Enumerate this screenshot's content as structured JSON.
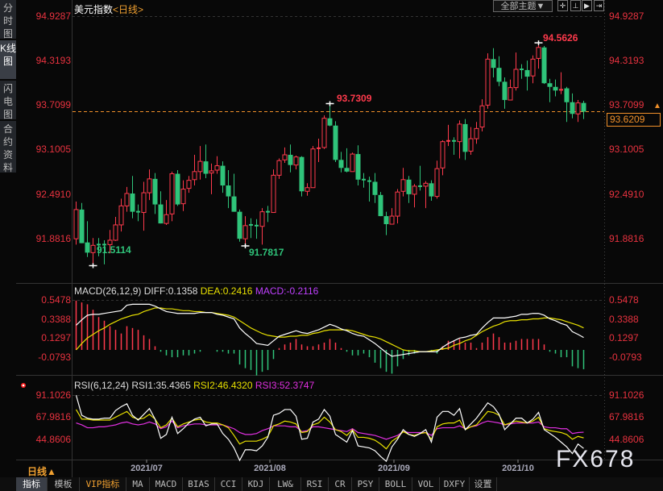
{
  "sidebar": {
    "tabs": [
      {
        "label": "分时图",
        "active": false
      },
      {
        "label": "K线图",
        "active": true
      },
      {
        "label": "闪电图",
        "active": false
      },
      {
        "label": "合约资料",
        "active": false
      }
    ]
  },
  "header": {
    "symbol": "美元指数",
    "period": "<日线>",
    "theme_button": "全部主题▼"
  },
  "toolbar_icons": [
    "crosshair-icon",
    "zoom-range-icon",
    "play-forward-icon",
    "exit-icon"
  ],
  "colors": {
    "up": "#ff3a4c",
    "down": "#2fc47a",
    "diff": "#ffffff",
    "dea": "#e8e000",
    "macd_label": "#c040ff",
    "rsi1": "#ffffff",
    "rsi2": "#e8e000",
    "rsi3": "#e030e0",
    "last_price": "#f0902a"
  },
  "price_axis": {
    "labels": [
      "94.9287",
      "94.3193",
      "93.7099",
      "93.1005",
      "92.4910",
      "91.8816"
    ],
    "last_price": "93.6209"
  },
  "annotations": {
    "high1": "93.7309",
    "high2": "94.5626",
    "low1": "91.5114",
    "low2": "91.7817"
  },
  "macd": {
    "title": "MACD(26,12,9)",
    "diff_label": "DIFF:0.1358",
    "dea_label": "DEA:0.2416",
    "macd_label": "MACD:-0.2116",
    "axis_labels": [
      "0.5478",
      "0.3388",
      "0.1297",
      "-0.0793"
    ]
  },
  "rsi": {
    "title": "RSI(6,12,24)",
    "rsi1_label": "RSI1:35.4365",
    "rsi2_label": "RSI2:46.4320",
    "rsi3_label": "RSI3:52.3747",
    "axis_labels": [
      "91.1026",
      "67.9816",
      "44.8606"
    ]
  },
  "date_axis": {
    "period_label": "日线▲",
    "labels": [
      "2021/07",
      "2021/08",
      "2021/09",
      "2021/10"
    ]
  },
  "bottom_tabs": [
    "指标",
    "模板",
    "VIP指标",
    "MA",
    "MACD",
    "BIAS",
    "CCI",
    "KDJ",
    "LW&",
    "RSI",
    "CR",
    "PSY",
    "BOLL",
    "VOL",
    "DXFY",
    "设置"
  ],
  "watermark": "FX678",
  "chart_data": {
    "type": "candlestick",
    "title": "美元指数<日线>",
    "ylim": [
      91.3,
      94.9287
    ],
    "candles_ohlc": [
      [
        91.88,
        92.39,
        91.8,
        92.28
      ],
      [
        92.28,
        92.37,
        91.82,
        91.82
      ],
      [
        91.83,
        92.12,
        91.63,
        91.69
      ],
      [
        91.69,
        91.89,
        91.5114,
        91.79
      ],
      [
        91.8,
        91.89,
        91.64,
        91.79
      ],
      [
        91.8,
        91.86,
        91.53,
        91.79
      ],
      [
        91.8,
        92.0,
        91.68,
        91.86
      ],
      [
        91.86,
        92.18,
        91.85,
        92.07
      ],
      [
        92.07,
        92.43,
        91.98,
        92.33
      ],
      [
        92.33,
        92.59,
        92.25,
        92.5
      ],
      [
        92.5,
        92.74,
        92.16,
        92.25
      ],
      [
        92.25,
        92.35,
        92.12,
        92.24
      ],
      [
        92.24,
        92.66,
        91.99,
        92.51
      ],
      [
        92.51,
        92.83,
        92.41,
        92.7
      ],
      [
        92.7,
        92.78,
        92.22,
        92.35
      ],
      [
        92.35,
        92.53,
        92.09,
        92.09
      ],
      [
        92.09,
        92.41,
        92.07,
        92.21
      ],
      [
        92.22,
        92.8,
        92.12,
        92.77
      ],
      [
        92.77,
        92.82,
        92.33,
        92.35
      ],
      [
        92.36,
        92.68,
        92.26,
        92.56
      ],
      [
        92.57,
        92.74,
        92.51,
        92.68
      ],
      [
        92.69,
        93.03,
        92.61,
        92.8
      ],
      [
        92.8,
        93.15,
        92.69,
        92.94
      ],
      [
        92.94,
        93.17,
        92.71,
        92.77
      ],
      [
        92.78,
        92.91,
        92.49,
        92.81
      ],
      [
        92.82,
        93.01,
        92.77,
        92.88
      ],
      [
        92.88,
        92.94,
        92.51,
        92.61
      ],
      [
        92.61,
        92.82,
        92.3,
        92.46
      ],
      [
        92.46,
        92.77,
        92.25,
        92.25
      ],
      [
        92.25,
        92.28,
        91.84,
        91.88
      ],
      [
        91.88,
        92.19,
        91.7817,
        92.06
      ],
      [
        92.07,
        92.16,
        91.89,
        92.06
      ],
      [
        92.06,
        92.15,
        91.88,
        92.05
      ],
      [
        92.05,
        92.3,
        91.8,
        92.25
      ],
      [
        92.25,
        92.33,
        92.11,
        92.24
      ],
      [
        92.24,
        92.83,
        92.24,
        92.75
      ],
      [
        92.75,
        92.98,
        92.7,
        92.95
      ],
      [
        92.96,
        93.13,
        92.92,
        93.03
      ],
      [
        93.03,
        93.17,
        92.79,
        92.89
      ],
      [
        92.89,
        93.02,
        92.83,
        93.0
      ],
      [
        93.0,
        93.01,
        92.46,
        92.53
      ],
      [
        92.53,
        92.64,
        92.47,
        92.58
      ],
      [
        92.58,
        93.15,
        92.58,
        93.11
      ],
      [
        93.11,
        93.25,
        92.93,
        93.12
      ],
      [
        93.13,
        93.57,
        93.11,
        93.53
      ],
      [
        93.53,
        93.7309,
        93.42,
        93.43
      ],
      [
        93.43,
        93.49,
        92.93,
        92.96
      ],
      [
        92.96,
        93.07,
        92.79,
        92.85
      ],
      [
        92.85,
        93.12,
        92.79,
        92.8
      ],
      [
        92.8,
        93.06,
        92.8,
        93.04
      ],
      [
        93.04,
        93.16,
        92.61,
        92.69
      ],
      [
        92.69,
        92.78,
        92.58,
        92.68
      ],
      [
        92.67,
        92.73,
        92.39,
        92.66
      ],
      [
        92.66,
        92.78,
        92.37,
        92.48
      ],
      [
        92.48,
        92.52,
        92.19,
        92.19
      ],
      [
        92.19,
        92.25,
        91.93,
        92.08
      ],
      [
        92.08,
        92.3,
        92.08,
        92.19
      ],
      [
        92.19,
        92.56,
        92.09,
        92.52
      ],
      [
        92.53,
        92.85,
        92.46,
        92.69
      ],
      [
        92.69,
        92.74,
        92.37,
        92.49
      ],
      [
        92.49,
        92.63,
        92.31,
        92.6
      ],
      [
        92.6,
        92.88,
        92.54,
        92.59
      ],
      [
        92.6,
        92.67,
        92.3,
        92.64
      ],
      [
        92.64,
        92.68,
        92.4,
        92.46
      ],
      [
        92.46,
        92.95,
        92.43,
        92.84
      ],
      [
        92.85,
        93.23,
        92.75,
        93.21
      ],
      [
        93.21,
        93.44,
        93.15,
        93.22
      ],
      [
        93.22,
        93.27,
        93.03,
        93.21
      ],
      [
        93.21,
        93.5,
        92.98,
        93.45
      ],
      [
        93.45,
        93.52,
        92.96,
        93.07
      ],
      [
        93.08,
        93.41,
        93.03,
        93.25
      ],
      [
        93.25,
        93.48,
        93.18,
        93.39
      ],
      [
        93.41,
        93.79,
        93.35,
        93.7
      ],
      [
        93.71,
        94.42,
        93.66,
        94.34
      ],
      [
        94.34,
        94.49,
        94.09,
        94.22
      ],
      [
        94.22,
        94.38,
        93.97,
        94.03
      ],
      [
        94.03,
        94.09,
        93.66,
        93.78
      ],
      [
        93.78,
        94.06,
        93.78,
        93.95
      ],
      [
        93.95,
        94.43,
        93.91,
        94.2
      ],
      [
        94.2,
        94.27,
        94.07,
        94.19
      ],
      [
        94.19,
        94.32,
        93.91,
        94.1
      ],
      [
        94.11,
        94.39,
        94.01,
        94.34
      ],
      [
        94.35,
        94.5626,
        94.21,
        94.5
      ],
      [
        94.5,
        94.52,
        94.0,
        94.01
      ],
      [
        94.01,
        94.07,
        93.75,
        93.96
      ],
      [
        93.96,
        94.06,
        93.83,
        93.91
      ],
      [
        93.91,
        94.16,
        93.86,
        93.92
      ],
      [
        93.94,
        93.96,
        93.48,
        93.75
      ],
      [
        93.75,
        93.87,
        93.53,
        93.59
      ],
      [
        93.59,
        93.78,
        93.48,
        93.74
      ],
      [
        93.74,
        93.77,
        93.52,
        93.6209
      ]
    ],
    "macd_diff": [
      0.27,
      0.33,
      0.38,
      0.39,
      0.39,
      0.4,
      0.41,
      0.42,
      0.43,
      0.49,
      0.5,
      0.5,
      0.5,
      0.5,
      0.48,
      0.45,
      0.42,
      0.41,
      0.4,
      0.4,
      0.4,
      0.4,
      0.41,
      0.41,
      0.41,
      0.39,
      0.38,
      0.36,
      0.34,
      0.24,
      0.18,
      0.13,
      0.07,
      0.06,
      0.05,
      0.1,
      0.15,
      0.17,
      0.19,
      0.21,
      0.19,
      0.18,
      0.2,
      0.22,
      0.25,
      0.28,
      0.26,
      0.23,
      0.21,
      0.18,
      0.16,
      0.15,
      0.11,
      0.07,
      0.02,
      -0.03,
      -0.07,
      -0.06,
      -0.05,
      -0.04,
      -0.03,
      -0.02,
      -0.02,
      -0.02,
      -0.02,
      0.03,
      0.07,
      0.1,
      0.13,
      0.14,
      0.16,
      0.17,
      0.24,
      0.3,
      0.35,
      0.35,
      0.35,
      0.36,
      0.37,
      0.39,
      0.39,
      0.4,
      0.4,
      0.38,
      0.34,
      0.32,
      0.29,
      0.27,
      0.2,
      0.17,
      0.1358
    ],
    "macd_dea": [
      0.0,
      0.07,
      0.13,
      0.17,
      0.21,
      0.24,
      0.28,
      0.31,
      0.34,
      0.36,
      0.38,
      0.39,
      0.42,
      0.44,
      0.46,
      0.46,
      0.45,
      0.45,
      0.44,
      0.43,
      0.43,
      0.42,
      0.42,
      0.41,
      0.41,
      0.4,
      0.39,
      0.38,
      0.36,
      0.32,
      0.28,
      0.24,
      0.21,
      0.18,
      0.16,
      0.15,
      0.14,
      0.14,
      0.15,
      0.15,
      0.16,
      0.16,
      0.18,
      0.19,
      0.21,
      0.22,
      0.22,
      0.22,
      0.22,
      0.21,
      0.19,
      0.17,
      0.15,
      0.14,
      0.12,
      0.09,
      0.06,
      0.03,
      0.0,
      -0.01,
      -0.01,
      -0.02,
      -0.02,
      -0.01,
      0.0,
      0.01,
      0.02,
      0.05,
      0.07,
      0.1,
      0.12,
      0.16,
      0.2,
      0.23,
      0.26,
      0.28,
      0.31,
      0.32,
      0.32,
      0.33,
      0.33,
      0.34,
      0.34,
      0.35,
      0.35,
      0.34,
      0.33,
      0.31,
      0.29,
      0.27,
      0.2416
    ],
    "macd_ylim": [
      -0.0793,
      0.5478
    ],
    "rsi1": [
      91,
      70,
      67,
      66,
      66,
      67,
      67,
      75,
      79,
      82,
      70,
      65,
      71,
      77,
      66,
      46,
      50,
      68,
      51,
      56,
      62,
      66,
      68,
      59,
      61,
      61,
      51,
      45,
      36,
      23,
      34,
      34,
      33,
      38,
      47,
      70,
      72,
      76,
      76,
      69,
      45,
      46,
      63,
      66,
      76,
      69,
      50,
      46,
      42,
      54,
      38,
      37,
      36,
      33,
      27,
      22,
      37,
      45,
      55,
      50,
      48,
      51,
      55,
      42,
      68,
      74,
      74,
      70,
      77,
      55,
      61,
      67,
      75,
      83,
      79,
      71,
      55,
      61,
      67,
      67,
      62,
      66,
      73,
      55,
      51,
      47,
      42,
      37,
      30,
      40,
      35.4365
    ],
    "rsi2": [
      76,
      66,
      66,
      65,
      65,
      65,
      65,
      68,
      71,
      74,
      68,
      66,
      67,
      71,
      66,
      57,
      60,
      67,
      58,
      61,
      63,
      65,
      66,
      63,
      62,
      62,
      60,
      57,
      49,
      40,
      43,
      43,
      43,
      45,
      48,
      59,
      61,
      64,
      63,
      61,
      52,
      53,
      60,
      62,
      68,
      63,
      55,
      53,
      49,
      55,
      47,
      47,
      46,
      44,
      40,
      35,
      43,
      47,
      53,
      50,
      49,
      51,
      52,
      45,
      58,
      61,
      62,
      62,
      65,
      55,
      58,
      60,
      67,
      74,
      73,
      70,
      60,
      62,
      64,
      63,
      62,
      64,
      68,
      56,
      54,
      53,
      52,
      50,
      45,
      48,
      46.432
    ],
    "rsi3": [
      62,
      60,
      57,
      57,
      58,
      58,
      59,
      60,
      62,
      63,
      61,
      60,
      61,
      63,
      61,
      56,
      58,
      64,
      57,
      59,
      60,
      61,
      61,
      60,
      60,
      60,
      60,
      58,
      56,
      52,
      50,
      50,
      51,
      54,
      56,
      59,
      59,
      59,
      58,
      58,
      53,
      54,
      58,
      58,
      57,
      56,
      55,
      54,
      53,
      56,
      52,
      51,
      50,
      49,
      47,
      45,
      47,
      49,
      53,
      52,
      52,
      52,
      52,
      49,
      56,
      57,
      57,
      57,
      59,
      56,
      58,
      59,
      62,
      64,
      63,
      62,
      60,
      61,
      62,
      62,
      62,
      62,
      63,
      58,
      57,
      57,
      56,
      56,
      51,
      52,
      52.3747
    ],
    "rsi_ylim": [
      44.8606,
      91.1026
    ]
  }
}
